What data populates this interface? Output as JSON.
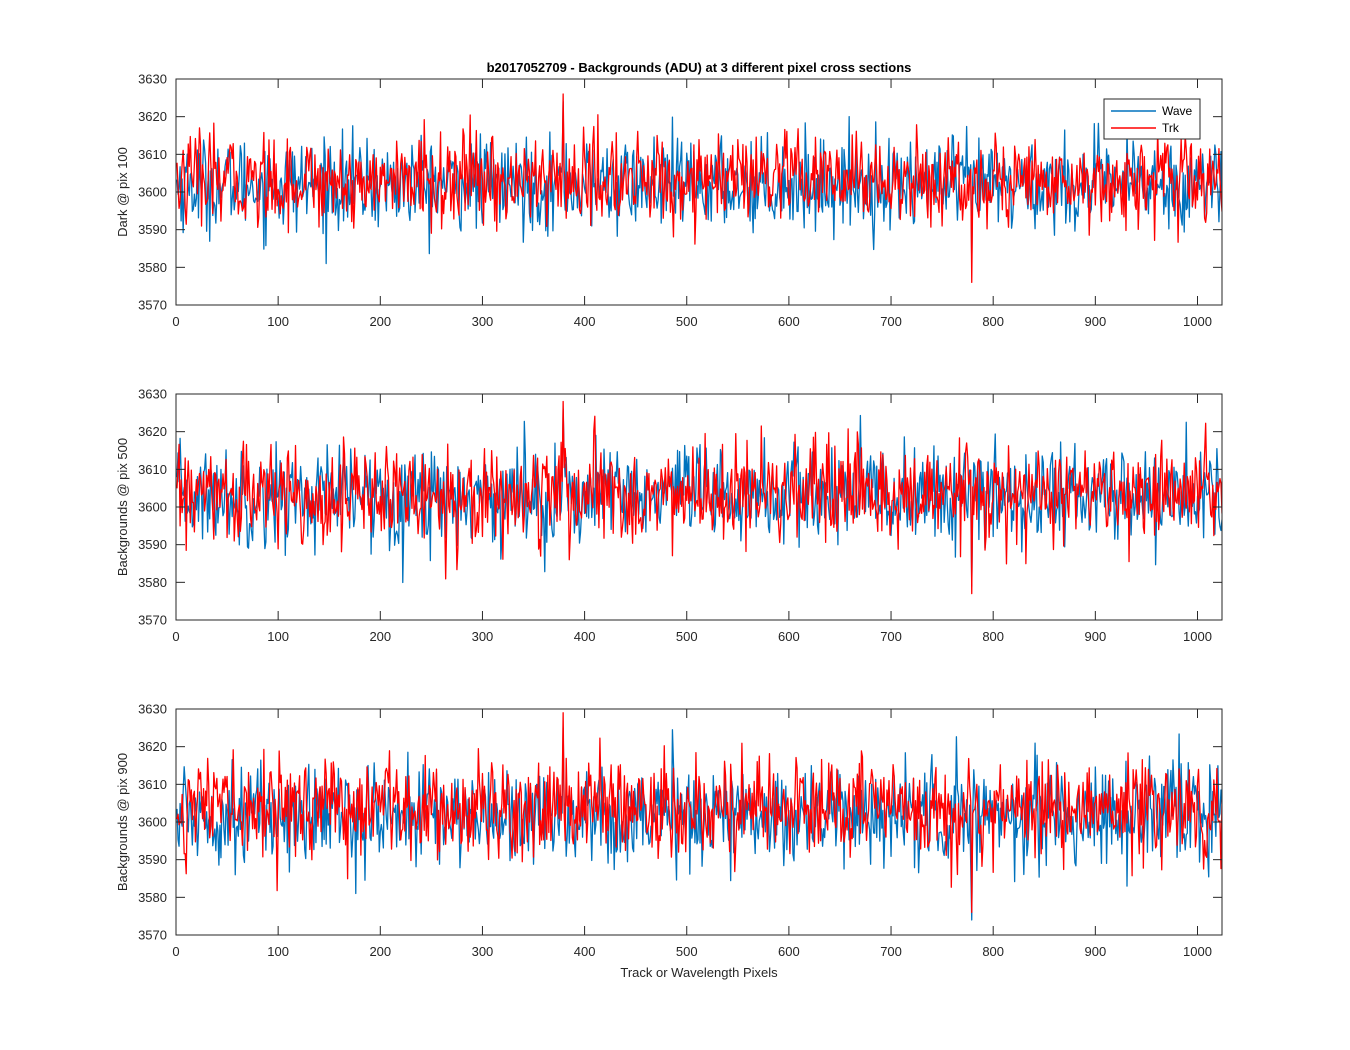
{
  "chart_data": {
    "type": "line",
    "title": "b2017052709 - Backgrounds (ADU) at 3 different pixel cross sections",
    "xlabel": "Track or Wavelength Pixels",
    "xlim": [
      0,
      1024
    ],
    "xticks": [
      0,
      100,
      200,
      300,
      400,
      500,
      600,
      700,
      800,
      900,
      1000
    ],
    "xtick_labels": [
      "0",
      "100",
      "200",
      "300",
      "400",
      "500",
      "600",
      "700",
      "800",
      "900",
      "1000"
    ],
    "yticks": [
      3570,
      3580,
      3590,
      3600,
      3610,
      3620,
      3630
    ],
    "ytick_labels": [
      "3570",
      "3580",
      "3590",
      "3600",
      "3610",
      "3620",
      "3630"
    ],
    "legend": {
      "position": "top-right",
      "entries": [
        "Wave",
        "Trk"
      ]
    },
    "colors": {
      "Wave": "#0072BD",
      "Trk": "#FF0000"
    },
    "panels": [
      {
        "ylabel": "Dark @ pix 100",
        "ylim": [
          3570,
          3630
        ],
        "series": [
          {
            "name": "Wave",
            "mean": 3602,
            "std": 6,
            "min": 3581,
            "max": 3624,
            "n": 1024
          },
          {
            "name": "Trk",
            "mean": 3603,
            "std": 6,
            "min": 3576,
            "max": 3626,
            "n": 1024
          }
        ]
      },
      {
        "ylabel": "Backgrounds @ pix 500",
        "ylim": [
          3570,
          3630
        ],
        "series": [
          {
            "name": "Wave",
            "mean": 3603,
            "std": 6.5,
            "min": 3579,
            "max": 3626,
            "n": 1024
          },
          {
            "name": "Trk",
            "mean": 3603,
            "std": 6.5,
            "min": 3577,
            "max": 3628,
            "n": 1024
          }
        ]
      },
      {
        "ylabel": "Backgrounds @ pix 900",
        "ylim": [
          3570,
          3630
        ],
        "series": [
          {
            "name": "Wave",
            "mean": 3602,
            "std": 6.5,
            "min": 3574,
            "max": 3625,
            "n": 1024
          },
          {
            "name": "Trk",
            "mean": 3604,
            "std": 6.5,
            "min": 3576,
            "max": 3629,
            "n": 1024
          }
        ]
      }
    ]
  }
}
